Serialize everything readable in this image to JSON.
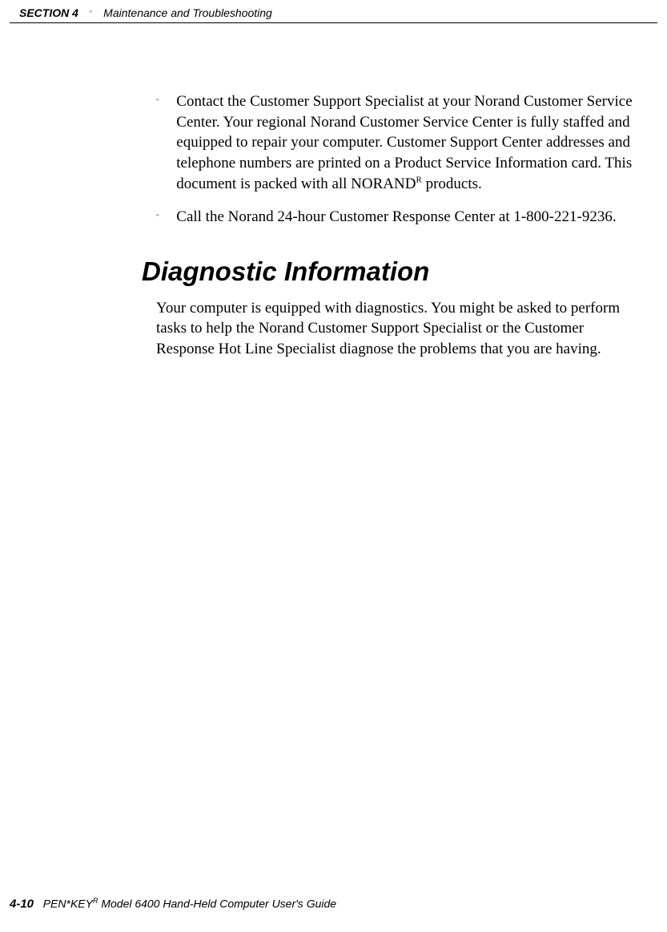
{
  "header": {
    "section_label": "SECTION 4",
    "bullet": "\"",
    "title": "Maintenance and Troubleshooting"
  },
  "content": {
    "bullets": [
      {
        "marker": "\"",
        "text_before": "Contact the Customer Support Specialist at your Norand Customer Service Center.  Your regional Norand Customer Service Center is fully staffed and equipped to repair your computer.  Customer Support Center addresses and telephone numbers are printed on a Product Service Information card.  This document is packed with all NORAND",
        "sup": "R",
        "text_after": "  products."
      },
      {
        "marker": "\"",
        "text_before": "Call the Norand 24-hour Customer Response Center at 1-800-221-9236.",
        "sup": "",
        "text_after": ""
      }
    ],
    "heading": "Diagnostic Information",
    "body": "Your computer is equipped with diagnostics.  You might be asked to perform tasks to help the Norand Customer Support Specialist or the Customer Response Hot Line Specialist diagnose the problems that you are having."
  },
  "footer": {
    "page": "4-10",
    "product_before": "PEN*KEY",
    "sup": "R",
    "product_after": " Model 6400 Hand-Held Computer User's Guide"
  }
}
